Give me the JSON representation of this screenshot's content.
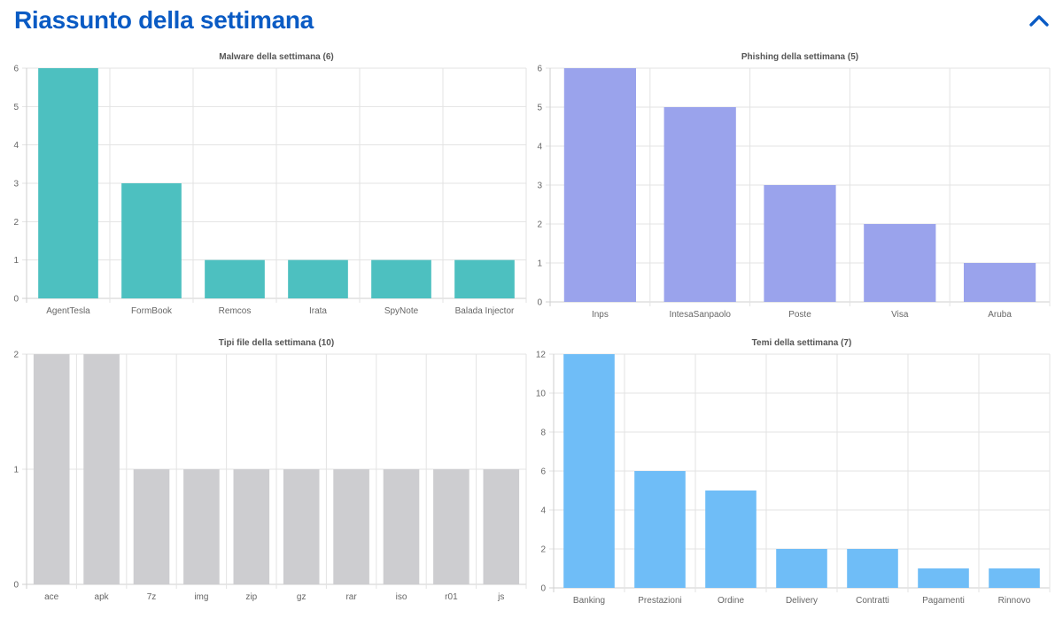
{
  "header": {
    "title": "Riassunto della settimana",
    "collapse_icon": "chevron-up-icon",
    "accent_color": "#0a5bc4"
  },
  "chart_data": [
    {
      "type": "bar",
      "title": "Malware della settimana (6)",
      "categories": [
        "AgentTesla",
        "FormBook",
        "Remcos",
        "Irata",
        "SpyNote",
        "Balada Injector"
      ],
      "values": [
        6,
        3,
        1,
        1,
        1,
        1
      ],
      "ylim": [
        0,
        6
      ],
      "yticks": [
        0,
        1,
        2,
        3,
        4,
        5,
        6
      ],
      "color": "#4dc0c0",
      "xlabel": "",
      "ylabel": "",
      "grid": true,
      "legend": "none"
    },
    {
      "type": "bar",
      "title": "Phishing della settimana (5)",
      "categories": [
        "Inps",
        "IntesaSanpaolo",
        "Poste",
        "Visa",
        "Aruba"
      ],
      "values": [
        6,
        5,
        3,
        2,
        1
      ],
      "ylim": [
        0,
        6
      ],
      "yticks": [
        0,
        1,
        2,
        3,
        4,
        5,
        6
      ],
      "color": "#9aa3ec",
      "xlabel": "",
      "ylabel": "",
      "grid": true,
      "legend": "none"
    },
    {
      "type": "bar",
      "title": "Tipi file della settimana (10)",
      "categories": [
        "ace",
        "apk",
        "7z",
        "img",
        "zip",
        "gz",
        "rar",
        "iso",
        "r01",
        "js"
      ],
      "values": [
        2,
        2,
        1,
        1,
        1,
        1,
        1,
        1,
        1,
        1
      ],
      "ylim": [
        0,
        2
      ],
      "yticks": [
        0,
        1,
        2
      ],
      "color": "#cdcdd0",
      "xlabel": "",
      "ylabel": "",
      "grid": true,
      "legend": "none"
    },
    {
      "type": "bar",
      "title": "Temi della settimana (7)",
      "categories": [
        "Banking",
        "Prestazioni",
        "Ordine",
        "Delivery",
        "Contratti",
        "Pagamenti",
        "Rinnovo"
      ],
      "values": [
        12,
        6,
        5,
        2,
        2,
        1,
        1
      ],
      "ylim": [
        0,
        12
      ],
      "yticks": [
        0,
        2,
        4,
        6,
        8,
        10,
        12
      ],
      "color": "#6fbdf7",
      "xlabel": "",
      "ylabel": "",
      "grid": true,
      "legend": "none"
    }
  ]
}
